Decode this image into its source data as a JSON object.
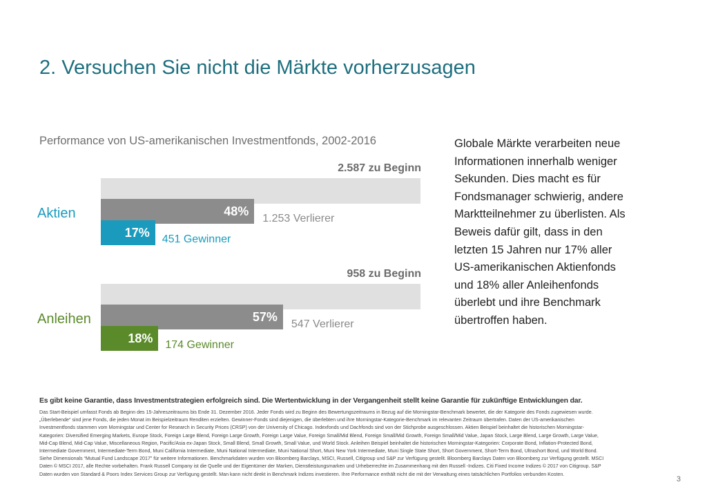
{
  "page": {
    "title": "2. Versuchen Sie nicht die Märkte vorherzusagen",
    "page_number": "3"
  },
  "chart_data": {
    "type": "bar",
    "title": "Performance von US-amerikanischen Investmentfonds, 2002-2016",
    "categories": [
      "Aktien",
      "Anleihen"
    ],
    "series": [
      {
        "name": "zu Beginn",
        "values": [
          2587,
          958
        ],
        "labels": [
          "2.587 zu Beginn",
          "958 zu Beginn"
        ],
        "pct": [
          100,
          100
        ],
        "color": "#e0e0e0"
      },
      {
        "name": "Verlierer",
        "values": [
          1253,
          547
        ],
        "labels": [
          "1.253 Verlierer",
          "547 Verlierer"
        ],
        "pct": [
          48,
          57
        ],
        "pct_labels": [
          "48%",
          "57%"
        ],
        "color": "#8c8c8c"
      },
      {
        "name": "Gewinner",
        "values": [
          451,
          174
        ],
        "labels": [
          "451 Gewinner",
          "174 Gewinner"
        ],
        "pct": [
          17,
          18
        ],
        "pct_labels": [
          "17%",
          "18%"
        ],
        "colors": [
          "#1a9bbd",
          "#5a8a2a"
        ]
      }
    ]
  },
  "sidebar": {
    "lines": [
      "Globale Märkte verarbeiten neue",
      "Informationen innerhalb weniger",
      "Sekunden. Dies macht es für",
      "Fondsmanager schwierig, andere",
      "Marktteilnehmer zu überlisten. Als",
      "Beweis dafür gilt, dass in den",
      "letzten 15 Jahren nur 17% aller",
      "US-amerikanischen Aktienfonds",
      "und 18% aller Anleihenfonds",
      "überlebt und ihre Benchmark",
      "übertroffen haben."
    ]
  },
  "footnote": {
    "bold": "Es gibt keine Garantie, dass Investmentstrategien erfolgreich sind. Die Wertentwicklung in der Vergangenheit stellt keine Garantie für zukünftige Entwicklungen dar.",
    "lines": [
      "Das Start-Beispiel umfasst Fonds ab Beginn des 15-Jahreszeitraums bis Ende 31. Dezember 2016. Jeder Fonds wird zu Beginn des Bewertungszeitraums in Bezug auf die Morningstar-Benchmark bewertet, die der Kategorie des Fonds zugewiesen wurde.",
      "„Überlebende“ sind jene Fonds, die jeden Monat im Beispielzeitraum Renditen erzielten. Gewinner-Fonds sind diejenigen, die überlebten und ihre Morningstar-Kategorie-Benchmark im relevanten Zeitraum übertrafen. Daten der US-amerikanischen",
      "Investmentfonds stammen vom Morningstar und Center for Research in Security Prices (CRSP) von der University of Chicago. Indexfonds und Dachfonds sind von der Stichprobe ausgeschlossen. Aktien Beispiel beinhaltet die historischen Morningstar-",
      "Kategorien: Diversified Emerging Markets, Europe Stock, Foreign Large Blend, Foreign Large Growth, Foreign Large Value, Foreign Small/Mid Blend, Foreign Small/Mid Growth, Foreign Small/Mid Value, Japan Stock, Large Blend, Large Growth, Large Value,",
      "Mid-Cap Blend, Mid-Cap Value, Miscellaneous Region, Pacific/Asia ex-Japan Stock, Small Blend, Small Growth, Small Value, und World Stock. Anleihen Beispiel beinhaltet die historischen Morningstar-Kategorien: Corporate Bond, Inflation-Protected Bond,",
      "Intermediate Government, Intermediate-Term Bond, Muni California Intermediate, Muni National Intermediate, Muni National Short, Muni New York Intermediate, Muni Single State Short, Short Government, Short-Term Bond, Ultrashort Bond, und World Bond.",
      "Siehe Dimensionals “Mutual Fund Landscape 2017” für weitere Informationen. Benchmarkdaten wurden von Bloomberg Barclays, MSCI, Russell, Citigroup und S&P zur Verfügung gestellt. Bloomberg Barclays Daten von Bloomberg zur Verfügung gestellt. MSCI",
      "Daten © MSCI 2017, alle Rechte vorbehalten. Frank Russell Company ist die Quelle und der Eigentümer der Marken, Dienstleistungsmarken und Urheberrechte im Zusammenhang mit den Russell -Indizes. Citi Fixed Income Indizes © 2017 von Citigroup. S&P",
      "Daten wurden von Standard & Poors Index Services Group zur Verfügung gestellt. Man kann nicht direkt in Benchmark Indizes investieren. Ihre Performance enthält nicht die mit der Verwaltung eines tatsächlichen Portfolios verbunden Kosten."
    ]
  }
}
